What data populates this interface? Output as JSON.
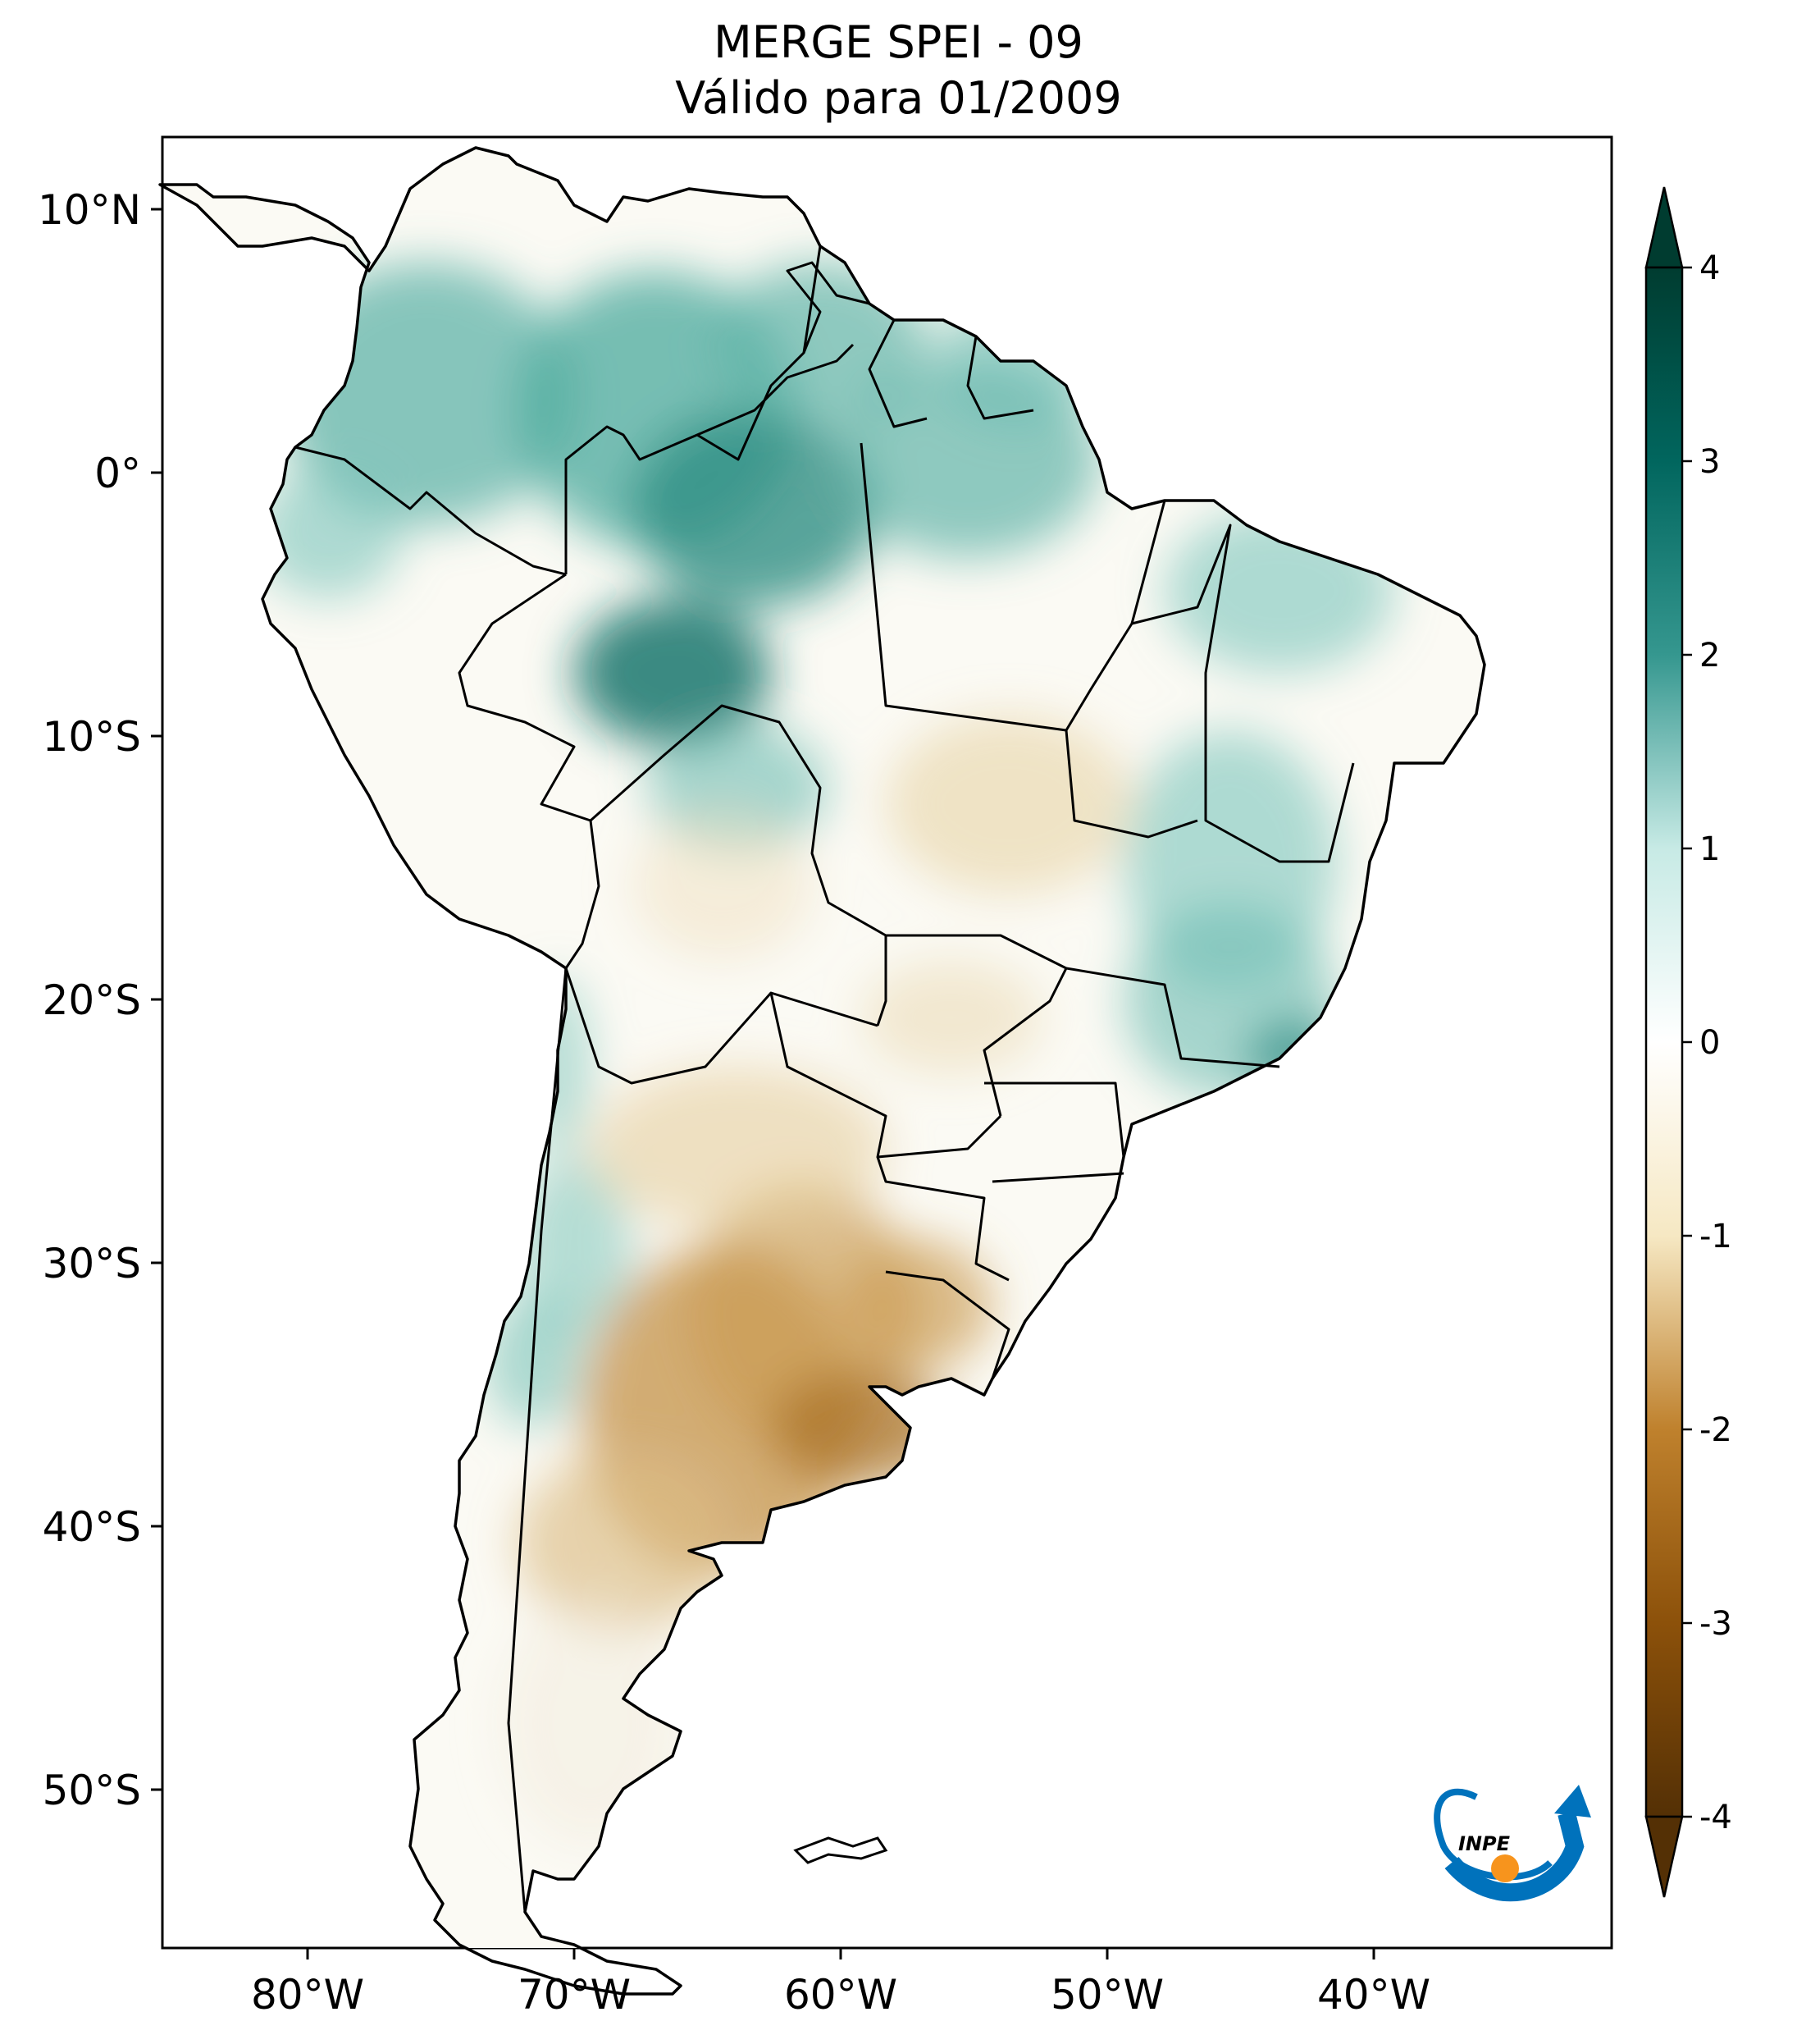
{
  "title": {
    "line1": "MERGE   SPEI - 09",
    "line2": "Válido para 01/2009"
  },
  "map": {
    "longitude_ticks": [
      "80°W",
      "70°W",
      "60°W",
      "50°W",
      "40°W"
    ],
    "latitude_ticks": [
      "10°N",
      "0°",
      "10°S",
      "20°S",
      "30°S",
      "40°S",
      "50°S"
    ],
    "extent": {
      "lon": [
        -85,
        -30
      ],
      "lat": [
        -56,
        13
      ]
    }
  },
  "colorbar": {
    "ticks": [
      "4",
      "3",
      "2",
      "1",
      "0",
      "-1",
      "-2",
      "-3",
      "-4"
    ],
    "range": [
      -4,
      4
    ],
    "colormap": "BrBG",
    "colors": {
      "neg4": "#543005",
      "neg3": "#8c510a",
      "neg2": "#bf812d",
      "neg1": "#f6e8c3",
      "zero": "#ffffff",
      "pos1": "#c7eae5",
      "pos2": "#35978f",
      "pos3": "#01665e",
      "pos4": "#003c30"
    }
  },
  "logo": {
    "text": "INPE",
    "accent": "#f7941d",
    "brand": "#0072bc"
  }
}
